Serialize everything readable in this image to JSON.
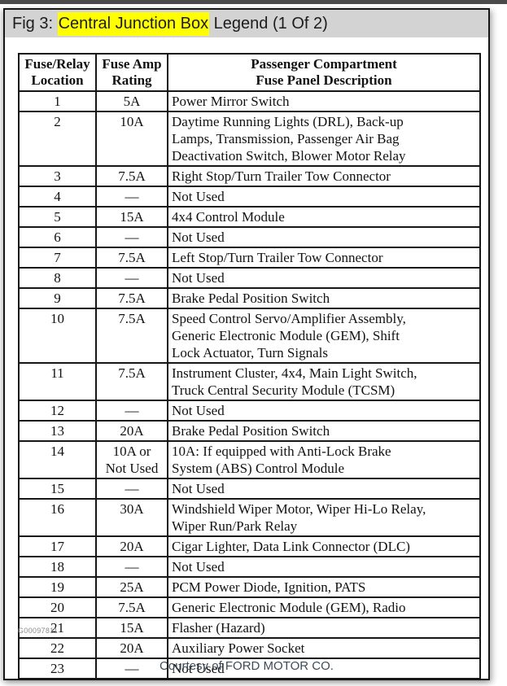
{
  "colors": {
    "top_strip": "#4b4b4b",
    "titlebar_gray": "#d3d3d3",
    "highlight_yellow": "#ffff00",
    "courtesy_text": "#3d4b59",
    "border_black": "#161616"
  },
  "header_bar": {
    "title_prefix": "Fig 3: ",
    "title_highlight": "Central Junction Box",
    "title_suffix": " Legend (1 Of 2)"
  },
  "table": {
    "columns": [
      "Fuse/Relay\nLocation",
      "Fuse Amp\nRating",
      "Passenger Compartment\nFuse Panel Description"
    ],
    "rows": [
      {
        "location": "1",
        "rating": "5A",
        "description": "Power Mirror Switch"
      },
      {
        "location": "2",
        "rating": "10A",
        "description": "Daytime Running Lights (DRL), Back-up\nLamps, Transmission, Passenger Air Bag\nDeactivation Switch, Blower Motor Relay"
      },
      {
        "location": "3",
        "rating": "7.5A",
        "description": "Right Stop/Turn Trailer Tow Connector"
      },
      {
        "location": "4",
        "rating": "—",
        "description": "Not Used"
      },
      {
        "location": "5",
        "rating": "15A",
        "description": "4x4 Control Module"
      },
      {
        "location": "6",
        "rating": "—",
        "description": "Not Used"
      },
      {
        "location": "7",
        "rating": "7.5A",
        "description": "Left Stop/Turn Trailer Tow Connector"
      },
      {
        "location": "8",
        "rating": "—",
        "description": "Not Used"
      },
      {
        "location": "9",
        "rating": "7.5A",
        "description": "Brake Pedal Position Switch"
      },
      {
        "location": "10",
        "rating": "7.5A",
        "description": "Speed Control Servo/Amplifier Assembly,\nGeneric Electronic Module (GEM), Shift\nLock Actuator, Turn Signals"
      },
      {
        "location": "11",
        "rating": "7.5A",
        "description": "Instrument Cluster, 4x4, Main Light Switch,\nTruck Central Security Module (TCSM)"
      },
      {
        "location": "12",
        "rating": "—",
        "description": "Not Used"
      },
      {
        "location": "13",
        "rating": "20A",
        "description": "Brake Pedal Position Switch"
      },
      {
        "location": "14",
        "rating": "10A or\nNot Used",
        "description": "10A: If equipped with Anti-Lock Brake\nSystem (ABS) Control Module"
      },
      {
        "location": "15",
        "rating": "—",
        "description": "Not Used"
      },
      {
        "location": "16",
        "rating": "30A",
        "description": "Windshield Wiper Motor, Wiper Hi-Lo Relay,\nWiper Run/Park Relay"
      },
      {
        "location": "17",
        "rating": "20A",
        "description": "Cigar Lighter, Data Link Connector (DLC)"
      },
      {
        "location": "18",
        "rating": "—",
        "description": "Not Used"
      },
      {
        "location": "19",
        "rating": "25A",
        "description": "PCM Power Diode, Ignition, PATS"
      },
      {
        "location": "20",
        "rating": "7.5A",
        "description": "Generic Electronic Module (GEM), Radio"
      },
      {
        "location": "21",
        "rating": "15A",
        "description": "Flasher (Hazard)"
      },
      {
        "location": "22",
        "rating": "20A",
        "description": "Auxiliary Power Socket"
      },
      {
        "location": "23",
        "rating": "—",
        "description": "Not Used"
      }
    ]
  },
  "footer": {
    "figure_code": "G00097811",
    "courtesy": "Courtesy of FORD MOTOR CO."
  }
}
